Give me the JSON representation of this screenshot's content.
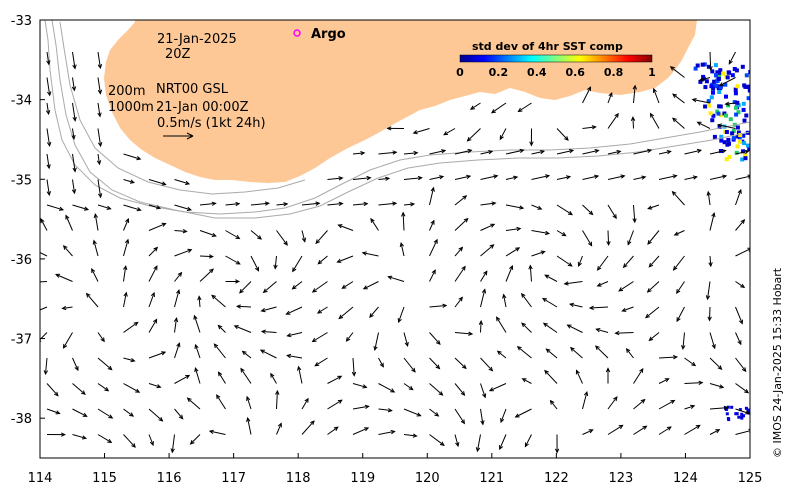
{
  "map": {
    "lon_ticks": [
      "114",
      "115",
      "116",
      "117",
      "118",
      "119",
      "120",
      "121",
      "122",
      "123",
      "124",
      "125"
    ],
    "lat_ticks": [
      "-33",
      "-34",
      "-35",
      "-36",
      "-37",
      "-38"
    ],
    "lon_range": [
      114,
      125
    ],
    "lat_range": [
      -38.5,
      -33
    ]
  },
  "annotations": {
    "date": "21-Jan-2025",
    "time": "20Z",
    "isobath_1": "200m",
    "isobath_2": "1000m",
    "product": "NRT00 GSL",
    "product_time": "21-Jan 00:00Z",
    "scale_label": "0.5m/s (1kt 24h)"
  },
  "legend": {
    "argo_label": "Argo",
    "argo_color": "#ff00ff"
  },
  "colorbar": {
    "title": "std dev of 4hr SST comp",
    "ticks": [
      "0",
      "0.2",
      "0.4",
      "0.6",
      "0.8",
      "1"
    ],
    "colors": [
      "#00008f",
      "#0000ff",
      "#0080ff",
      "#00ffff",
      "#80ff80",
      "#ffff00",
      "#ff8000",
      "#ff0000",
      "#800000"
    ]
  },
  "credit": "© IMOS 24-Jan-2025 15:33 Hobart",
  "colors": {
    "land": "#fdc896",
    "isobath": "#aaaaaa",
    "arrow": "#000000"
  }
}
